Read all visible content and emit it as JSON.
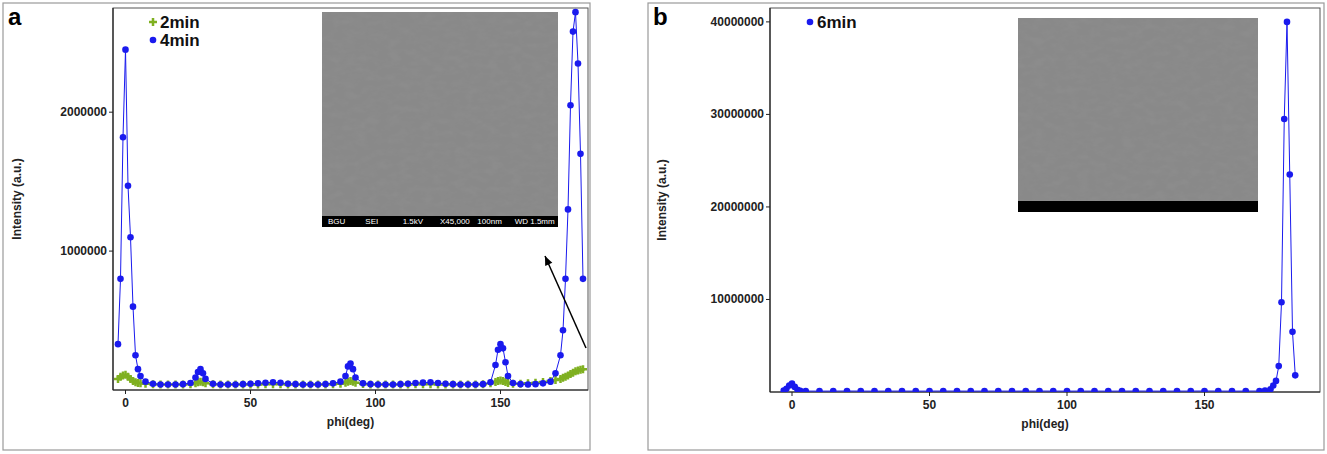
{
  "chart_data": [
    {
      "type": "line",
      "panel_label": "a",
      "x_label": "phi(deg)",
      "y_label": "Intensity (a.u.)",
      "xlim": [
        -5,
        185
      ],
      "xticks": [
        0,
        50,
        100,
        150
      ],
      "ylim": [
        0,
        2750000
      ],
      "yticks": [
        1000000,
        2000000
      ],
      "grid": false,
      "legend": "upper left",
      "inset_labels": [
        "BGU",
        "SEI",
        "1.5kV",
        "X45,000",
        "100nm",
        "WD 1.5mm"
      ],
      "x": [
        -3,
        -2,
        -1,
        0,
        1,
        2,
        3,
        4,
        5,
        6,
        8,
        11,
        14,
        17,
        20,
        23,
        26,
        28,
        29,
        30,
        31,
        32,
        35,
        38,
        41,
        44,
        47,
        50,
        53,
        56,
        59,
        62,
        65,
        68,
        71,
        74,
        77,
        80,
        83,
        86,
        88,
        89,
        90,
        91,
        92,
        95,
        98,
        101,
        104,
        107,
        110,
        113,
        116,
        119,
        122,
        125,
        128,
        131,
        134,
        137,
        140,
        143,
        146,
        148,
        149,
        150,
        151,
        152,
        153,
        155,
        158,
        161,
        164,
        167,
        170,
        172,
        174,
        175,
        176,
        177,
        178,
        179,
        180,
        181,
        182,
        183
      ],
      "series": [
        {
          "name": "2min",
          "color": "#7fb020",
          "marker": "plus",
          "line_style": "solid",
          "values": [
            80000,
            95000,
            105000,
            110000,
            95000,
            80000,
            65000,
            55000,
            50000,
            48000,
            45000,
            42000,
            40000,
            40000,
            40000,
            40000,
            42000,
            48000,
            55000,
            60000,
            55000,
            48000,
            42000,
            40000,
            40000,
            40000,
            40000,
            40000,
            40000,
            42000,
            42000,
            42000,
            40000,
            40000,
            40000,
            40000,
            40000,
            40000,
            42000,
            45000,
            52000,
            60000,
            65000,
            60000,
            52000,
            44000,
            40000,
            40000,
            40000,
            40000,
            40000,
            40000,
            42000,
            42000,
            42000,
            40000,
            40000,
            40000,
            40000,
            40000,
            40000,
            42000,
            48000,
            58000,
            65000,
            68000,
            65000,
            58000,
            50000,
            45000,
            45000,
            48000,
            52000,
            58000,
            65000,
            72000,
            80000,
            88000,
            95000,
            105000,
            115000,
            125000,
            135000,
            140000,
            145000,
            150000
          ]
        },
        {
          "name": "4min",
          "color": "#1a1aee",
          "marker": "circle",
          "line_style": "solid",
          "values": [
            330000,
            800000,
            1820000,
            2450000,
            1470000,
            1100000,
            600000,
            250000,
            150000,
            100000,
            60000,
            45000,
            40000,
            40000,
            40000,
            42000,
            50000,
            90000,
            130000,
            150000,
            120000,
            80000,
            45000,
            40000,
            40000,
            40000,
            42000,
            45000,
            48000,
            52000,
            55000,
            52000,
            45000,
            42000,
            40000,
            40000,
            40000,
            42000,
            48000,
            60000,
            100000,
            170000,
            190000,
            150000,
            90000,
            48000,
            42000,
            40000,
            40000,
            40000,
            42000,
            45000,
            50000,
            53000,
            55000,
            50000,
            45000,
            42000,
            40000,
            40000,
            40000,
            42000,
            55000,
            180000,
            290000,
            330000,
            300000,
            200000,
            100000,
            50000,
            42000,
            40000,
            42000,
            48000,
            60000,
            120000,
            250000,
            430000,
            800000,
            1300000,
            2050000,
            2580000,
            2720000,
            2350000,
            1700000,
            800000
          ]
        }
      ]
    },
    {
      "type": "line",
      "panel_label": "b",
      "x_label": "phi(deg)",
      "y_label": "Intensity (a.u.)",
      "xlim": [
        -8,
        192
      ],
      "xticks": [
        0,
        50,
        100,
        150
      ],
      "ylim": [
        0,
        41500000
      ],
      "yticks": [
        10000000,
        20000000,
        30000000,
        40000000
      ],
      "grid": false,
      "legend": "upper left",
      "x": [
        -3,
        -2,
        -1,
        0,
        1,
        2,
        3,
        5,
        10,
        15,
        20,
        25,
        30,
        35,
        40,
        45,
        50,
        55,
        60,
        65,
        70,
        75,
        80,
        85,
        90,
        95,
        100,
        105,
        110,
        115,
        120,
        125,
        130,
        135,
        140,
        145,
        150,
        155,
        160,
        165,
        170,
        172,
        174,
        175,
        176,
        177,
        178,
        179,
        180,
        181,
        182,
        183
      ],
      "series": [
        {
          "name": "6min",
          "color": "#1a1aee",
          "marker": "circle",
          "line_style": "solid",
          "values": [
            150000,
            350000,
            700000,
            900000,
            550000,
            250000,
            130000,
            100000,
            95000,
            100000,
            105000,
            100000,
            95000,
            100000,
            100000,
            95000,
            100000,
            105000,
            100000,
            95000,
            100000,
            100000,
            95000,
            100000,
            105000,
            100000,
            95000,
            100000,
            100000,
            95000,
            100000,
            105000,
            100000,
            95000,
            100000,
            100000,
            110000,
            100000,
            95000,
            100000,
            105000,
            150000,
            300000,
            700000,
            1200000,
            2800000,
            9700000,
            29500000,
            40000000,
            23500000,
            6500000,
            1800000
          ]
        }
      ]
    }
  ]
}
